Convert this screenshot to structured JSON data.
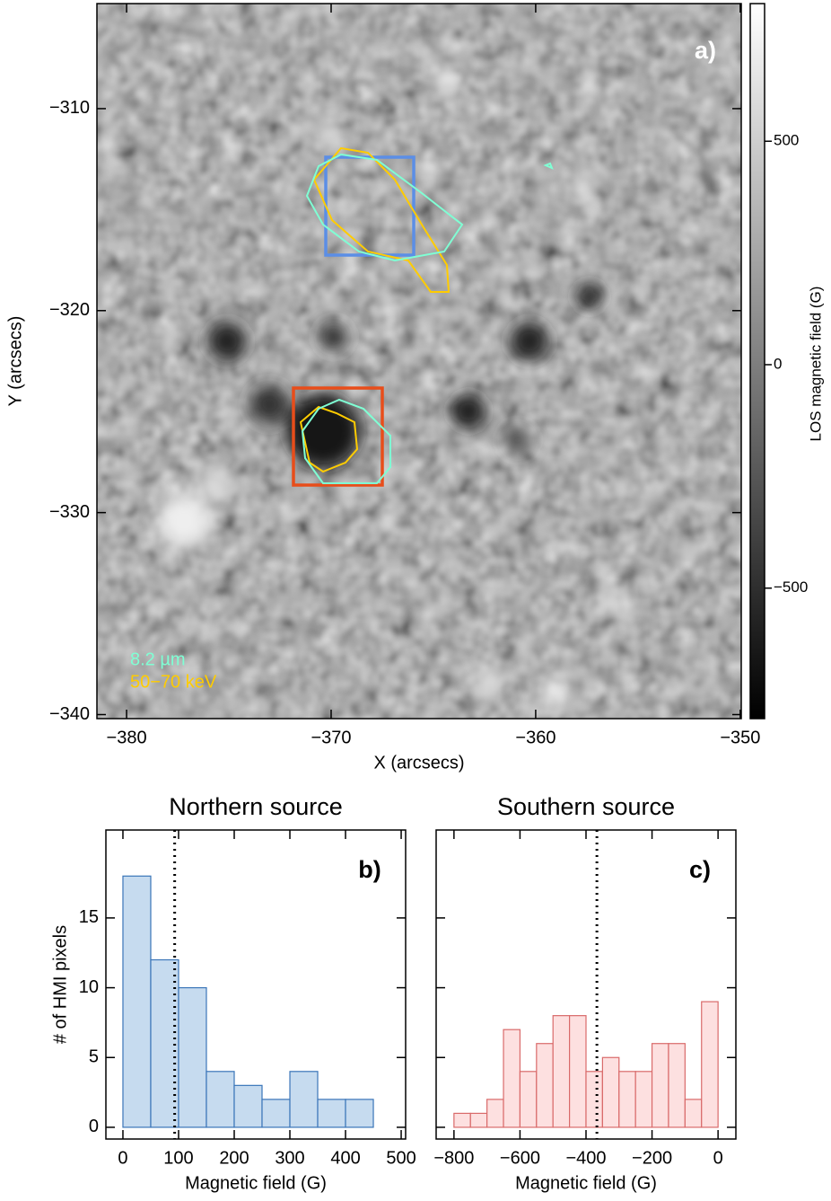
{
  "chart_data": [
    {
      "type": "image",
      "annotation": "a)",
      "xlabel": "X (arcsecs)",
      "ylabel": "Y (arcsecs)",
      "xlim": [
        -381.45,
        -349.95
      ],
      "ylim": [
        -340.2,
        -304.8
      ],
      "xticks": [
        {
          "value": -380,
          "label": "−380"
        },
        {
          "value": -370,
          "label": "−370"
        },
        {
          "value": -360,
          "label": "−360"
        },
        {
          "value": -350,
          "label": "−350"
        }
      ],
      "yticks": [
        {
          "value": -310,
          "label": "−310"
        },
        {
          "value": -320,
          "label": "−320"
        },
        {
          "value": -330,
          "label": "−330"
        },
        {
          "value": -340,
          "label": "−340"
        }
      ],
      "colorbar": {
        "label": "LOS magnetic field (G)",
        "lim": [
          -792,
          808
        ],
        "ticks": [
          {
            "value": -500,
            "label": "−500"
          },
          0,
          500
        ]
      },
      "legend": [
        {
          "name": "8.2 µm",
          "color": "#7fffd4"
        },
        {
          "name": "50−70 keV",
          "color": "#ffcc00"
        }
      ]
    },
    {
      "type": "histogram",
      "title": "Northern source",
      "annotation": "b)",
      "xlabel": "Magnetic field (G)",
      "ylabel": "# of HMI pixels",
      "bins": [
        0,
        50,
        100,
        150,
        200,
        250,
        300,
        350,
        400,
        450
      ],
      "counts": [
        18,
        12,
        10,
        4,
        3,
        2,
        4,
        2,
        2
      ],
      "color": "#c6dbef",
      "edgecolor": "#3a75b8",
      "vline": 93,
      "xlim": [
        -30.6,
        508
      ],
      "ylim": [
        -0.84,
        21.3
      ],
      "xticks": [
        0,
        100,
        200,
        300,
        400,
        500
      ],
      "yticks": [
        0,
        5,
        10,
        15
      ]
    },
    {
      "type": "histogram",
      "title": "Southern source",
      "annotation": "c)",
      "xlabel": "Magnetic field (G)",
      "bins": [
        -800,
        -750,
        -700,
        -650,
        -600,
        -550,
        -500,
        -450,
        -400,
        -350,
        -300,
        -250,
        -200,
        -150,
        -100,
        -50,
        0
      ],
      "counts": [
        1,
        1,
        2,
        7,
        4,
        6,
        8,
        8,
        4,
        5,
        4,
        4,
        6,
        6,
        2,
        9
      ],
      "color": "#fde0e0",
      "edgecolor": "#d96a6a",
      "vline": -367,
      "xlim": [
        -854,
        54
      ],
      "ylim": [
        -0.84,
        21.3
      ],
      "xticks": [
        {
          "value": -800,
          "label": "−800"
        },
        {
          "value": -600,
          "label": "−600"
        },
        {
          "value": -400,
          "label": "−400"
        },
        {
          "value": -200,
          "label": "−200"
        },
        0
      ],
      "ytick_marks": [
        0,
        5,
        10,
        15
      ]
    }
  ]
}
